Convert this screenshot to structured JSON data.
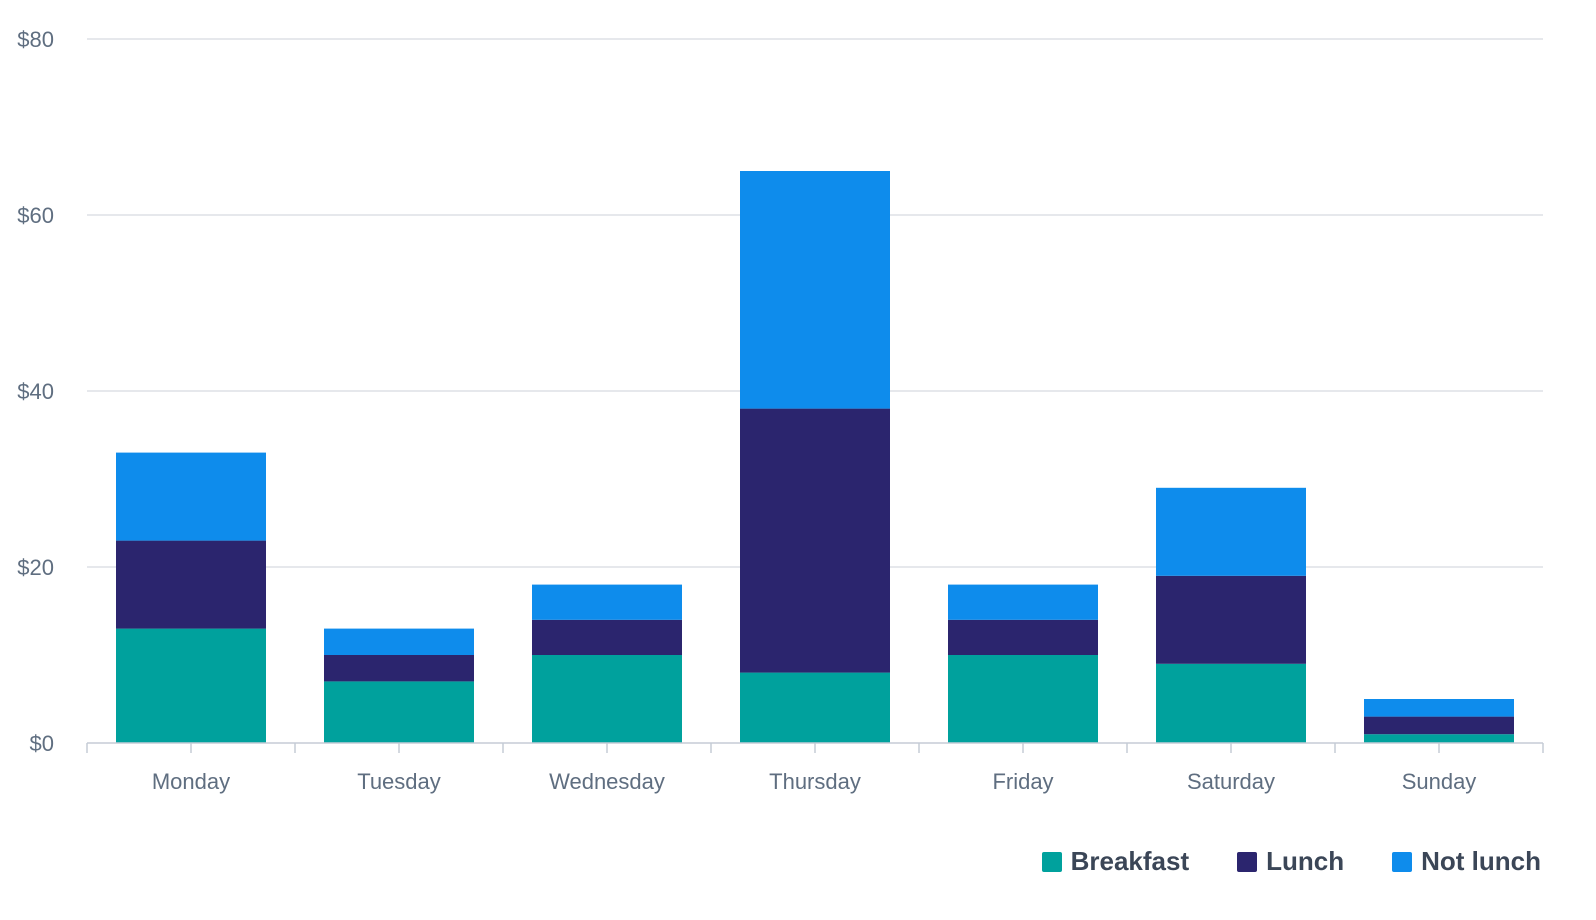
{
  "chart_data": {
    "type": "bar",
    "stacked": true,
    "categories": [
      "Monday",
      "Tuesday",
      "Wednesday",
      "Thursday",
      "Friday",
      "Saturday",
      "Sunday"
    ],
    "series": [
      {
        "name": "Breakfast",
        "color": "#00a19d",
        "values": [
          13,
          7,
          10,
          8,
          10,
          9,
          1
        ]
      },
      {
        "name": "Lunch",
        "color": "#2b256e",
        "values": [
          10,
          3,
          4,
          30,
          4,
          10,
          2
        ]
      },
      {
        "name": "Not lunch",
        "color": "#0e8cec",
        "values": [
          10,
          3,
          4,
          27,
          4,
          10,
          2
        ]
      }
    ],
    "ylim": [
      0,
      80
    ],
    "yticks": [
      0,
      20,
      40,
      60,
      80
    ],
    "ytick_labels": [
      "$0",
      "$20",
      "$40",
      "$60",
      "$80"
    ],
    "title": "",
    "xlabel": "",
    "ylabel": "",
    "grid": true,
    "legend_position": "bottom-right"
  }
}
